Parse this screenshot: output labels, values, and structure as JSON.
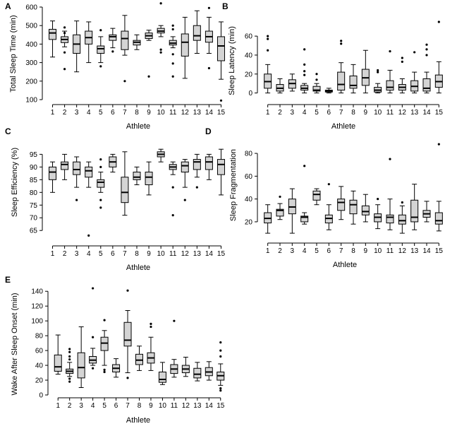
{
  "chart_data": [
    {
      "panel": "A",
      "type": "box",
      "xlabel": "Athlete",
      "ylabel": "Total Sleep Time (min)",
      "categories": [
        "1",
        "2",
        "3",
        "4",
        "5",
        "6",
        "7",
        "8",
        "9",
        "10",
        "11",
        "12",
        "13",
        "14",
        "15"
      ],
      "ylim": [
        100,
        600
      ],
      "yticks": [
        100,
        200,
        300,
        400,
        500,
        600
      ],
      "boxes": [
        {
          "whislo": 330,
          "q1": 425,
          "med": 460,
          "q3": 480,
          "whishi": 525,
          "fliers": []
        },
        {
          "whislo": 385,
          "q1": 408,
          "med": 425,
          "q3": 440,
          "whishi": 470,
          "fliers": [
            490,
            460,
            355,
            265
          ]
        },
        {
          "whislo": 250,
          "q1": 350,
          "med": 400,
          "q3": 450,
          "whishi": 525,
          "fliers": []
        },
        {
          "whislo": 300,
          "q1": 400,
          "med": 435,
          "q3": 470,
          "whishi": 520,
          "fliers": []
        },
        {
          "whislo": 300,
          "q1": 350,
          "med": 375,
          "q3": 390,
          "whishi": 440,
          "fliers": [
            475,
            280
          ]
        },
        {
          "whislo": 380,
          "q1": 420,
          "med": 440,
          "q3": 450,
          "whishi": 485,
          "fliers": [
            360
          ]
        },
        {
          "whislo": 340,
          "q1": 370,
          "med": 430,
          "q3": 470,
          "whishi": 555,
          "fliers": [
            200
          ]
        },
        {
          "whislo": 370,
          "q1": 395,
          "med": 410,
          "q3": 420,
          "whishi": 450,
          "fliers": []
        },
        {
          "whislo": 420,
          "q1": 430,
          "med": 445,
          "q3": 460,
          "whishi": 475,
          "fliers": [
            225
          ]
        },
        {
          "whislo": 440,
          "q1": 460,
          "med": 470,
          "q3": 485,
          "whishi": 500,
          "fliers": [
            620,
            370,
            355
          ]
        },
        {
          "whislo": 380,
          "q1": 395,
          "med": 405,
          "q3": 420,
          "whishi": 440,
          "fliers": [
            500,
            480,
            345,
            295,
            225
          ]
        },
        {
          "whislo": 215,
          "q1": 335,
          "med": 410,
          "q3": 455,
          "whishi": 545,
          "fliers": []
        },
        {
          "whislo": 350,
          "q1": 420,
          "med": 445,
          "q3": 500,
          "whishi": 580,
          "fliers": []
        },
        {
          "whislo": 350,
          "q1": 410,
          "med": 440,
          "q3": 470,
          "whishi": 545,
          "fliers": [
            595,
            270
          ]
        },
        {
          "whislo": 210,
          "q1": 310,
          "med": 390,
          "q3": 440,
          "whishi": 520,
          "fliers": [
            95
          ]
        }
      ]
    },
    {
      "panel": "B",
      "type": "box",
      "xlabel": "Athlete",
      "ylabel": "Sleep Latency (min)",
      "categories": [
        "1",
        "2",
        "3",
        "4",
        "5",
        "6",
        "7",
        "8",
        "9",
        "10",
        "11",
        "12",
        "13",
        "14",
        "15"
      ],
      "ylim": [
        -7,
        75
      ],
      "yticks": [
        0,
        20,
        40,
        60
      ],
      "boxes": [
        {
          "whislo": 0,
          "q1": 5,
          "med": 12,
          "q3": 20,
          "whishi": 30,
          "fliers": [
            60,
            57,
            45
          ]
        },
        {
          "whislo": 0,
          "q1": 2,
          "med": 5,
          "q3": 9,
          "whishi": 15,
          "fliers": []
        },
        {
          "whislo": 2,
          "q1": 5,
          "med": 10,
          "q3": 14,
          "whishi": 20,
          "fliers": []
        },
        {
          "whislo": 0,
          "q1": 3,
          "med": 5,
          "q3": 8,
          "whishi": 10,
          "fliers": [
            46,
            30,
            23,
            19
          ]
        },
        {
          "whislo": 0,
          "q1": 2,
          "med": 3,
          "q3": 7,
          "whishi": 10,
          "fliers": [
            20,
            14
          ]
        },
        {
          "whislo": 0,
          "q1": 1,
          "med": 2,
          "q3": 3,
          "whishi": 5,
          "fliers": []
        },
        {
          "whislo": 0,
          "q1": 3,
          "med": 9,
          "q3": 22,
          "whishi": 32,
          "fliers": [
            55,
            52
          ]
        },
        {
          "whislo": 0,
          "q1": 5,
          "med": 8,
          "q3": 18,
          "whishi": 30,
          "fliers": []
        },
        {
          "whislo": 0,
          "q1": 8,
          "med": 16,
          "q3": 25,
          "whishi": 45,
          "fliers": []
        },
        {
          "whislo": 0,
          "q1": 1,
          "med": 3,
          "q3": 6,
          "whishi": 10,
          "fliers": [
            24,
            22
          ]
        },
        {
          "whislo": 0,
          "q1": 3,
          "med": 6,
          "q3": 13,
          "whishi": 24,
          "fliers": [
            44
          ]
        },
        {
          "whislo": 0,
          "q1": 3,
          "med": 6,
          "q3": 9,
          "whishi": 15,
          "fliers": [
            37,
            33
          ]
        },
        {
          "whislo": 0,
          "q1": 2,
          "med": 7,
          "q3": 13,
          "whishi": 22,
          "fliers": [
            43
          ]
        },
        {
          "whislo": 0,
          "q1": 2,
          "med": 5,
          "q3": 15,
          "whishi": 22,
          "fliers": [
            51,
            46,
            40
          ]
        },
        {
          "whislo": 0,
          "q1": 6,
          "med": 12,
          "q3": 19,
          "whishi": 33,
          "fliers": [
            75
          ]
        }
      ]
    },
    {
      "panel": "C",
      "type": "box",
      "xlabel": "Athlete",
      "ylabel": "Sleep Efficiency (%)",
      "categories": [
        "1",
        "2",
        "3",
        "4",
        "5",
        "6",
        "7",
        "8",
        "9",
        "10",
        "11",
        "12",
        "13",
        "14",
        "15"
      ],
      "ylim": [
        62,
        96.5
      ],
      "yticks": [
        65,
        70,
        75,
        80,
        85,
        90,
        95
      ],
      "boxes": [
        {
          "whislo": 80,
          "q1": 85,
          "med": 88,
          "q3": 90,
          "whishi": 92,
          "fliers": []
        },
        {
          "whislo": 85,
          "q1": 89,
          "med": 91,
          "q3": 92,
          "whishi": 95,
          "fliers": []
        },
        {
          "whislo": 82,
          "q1": 87,
          "med": 89,
          "q3": 92,
          "whishi": 94,
          "fliers": [
            77
          ]
        },
        {
          "whislo": 82,
          "q1": 86,
          "med": 88.5,
          "q3": 90,
          "whishi": 92,
          "fliers": [
            63
          ]
        },
        {
          "whislo": 80,
          "q1": 82,
          "med": 84,
          "q3": 85,
          "whishi": 88,
          "fliers": [
            93,
            90,
            77,
            74
          ]
        },
        {
          "whislo": 88,
          "q1": 90,
          "med": 92,
          "q3": 94,
          "whishi": 95,
          "fliers": []
        },
        {
          "whislo": 71,
          "q1": 76,
          "med": 80,
          "q3": 86,
          "whishi": 96,
          "fliers": []
        },
        {
          "whislo": 83,
          "q1": 85,
          "med": 86,
          "q3": 88,
          "whishi": 90,
          "fliers": []
        },
        {
          "whislo": 79,
          "q1": 83,
          "med": 86,
          "q3": 88,
          "whishi": 92,
          "fliers": []
        },
        {
          "whislo": 92,
          "q1": 94,
          "med": 95,
          "q3": 96,
          "whishi": 97,
          "fliers": []
        },
        {
          "whislo": 87,
          "q1": 89,
          "med": 90,
          "q3": 91,
          "whishi": 92,
          "fliers": [
            82,
            71
          ]
        },
        {
          "whislo": 82,
          "q1": 88,
          "med": 90.5,
          "q3": 92,
          "whishi": 93,
          "fliers": [
            77
          ]
        },
        {
          "whislo": 86,
          "q1": 89,
          "med": 92,
          "q3": 93,
          "whishi": 95,
          "fliers": [
            82
          ]
        },
        {
          "whislo": 85,
          "q1": 89,
          "med": 92,
          "q3": 94,
          "whishi": 95,
          "fliers": []
        },
        {
          "whislo": 79,
          "q1": 87,
          "med": 91,
          "q3": 93,
          "whishi": 97,
          "fliers": []
        }
      ]
    },
    {
      "panel": "D",
      "type": "box",
      "xlabel": "Athlete",
      "ylabel": "Sleep Fragmentation",
      "categories": [
        "1",
        "2",
        "3",
        "4",
        "5",
        "6",
        "7",
        "8",
        "9",
        "10",
        "11",
        "12",
        "13",
        "14",
        "15"
      ],
      "ylim": [
        2,
        85
      ],
      "yticks": [
        20,
        40,
        60,
        80
      ],
      "boxes": [
        {
          "whislo": 10,
          "q1": 19,
          "med": 23,
          "q3": 28,
          "whishi": 35,
          "fliers": []
        },
        {
          "whislo": 22,
          "q1": 25,
          "med": 30,
          "q3": 31,
          "whishi": 36,
          "fliers": [
            42
          ]
        },
        {
          "whislo": 10,
          "q1": 27,
          "med": 33,
          "q3": 40,
          "whishi": 49,
          "fliers": []
        },
        {
          "whislo": 18,
          "q1": 20,
          "med": 24,
          "q3": 25,
          "whishi": 28,
          "fliers": [
            69
          ]
        },
        {
          "whislo": 35,
          "q1": 39,
          "med": 44,
          "q3": 47,
          "whishi": 49,
          "fliers": []
        },
        {
          "whislo": 13,
          "q1": 19,
          "med": 23,
          "q3": 26,
          "whishi": 35,
          "fliers": [
            53
          ]
        },
        {
          "whislo": 22,
          "q1": 30,
          "med": 37,
          "q3": 40,
          "whishi": 51,
          "fliers": []
        },
        {
          "whislo": 18,
          "q1": 27,
          "med": 35,
          "q3": 39,
          "whishi": 47,
          "fliers": []
        },
        {
          "whislo": 20,
          "q1": 26,
          "med": 29,
          "q3": 34,
          "whishi": 44,
          "fliers": []
        },
        {
          "whislo": 14,
          "q1": 20,
          "med": 24,
          "q3": 27,
          "whishi": 35,
          "fliers": [
            40
          ]
        },
        {
          "whislo": 13,
          "q1": 19,
          "med": 24,
          "q3": 26,
          "whishi": 40,
          "fliers": [
            75
          ]
        },
        {
          "whislo": 10,
          "q1": 18,
          "med": 21,
          "q3": 26,
          "whishi": 34,
          "fliers": [
            37
          ]
        },
        {
          "whislo": 13,
          "q1": 20,
          "med": 24,
          "q3": 39,
          "whishi": 53,
          "fliers": []
        },
        {
          "whislo": 20,
          "q1": 24,
          "med": 27,
          "q3": 30,
          "whishi": 38,
          "fliers": []
        },
        {
          "whislo": 12,
          "q1": 18,
          "med": 21,
          "q3": 28,
          "whishi": 38,
          "fliers": [
            88
          ]
        }
      ]
    },
    {
      "panel": "E",
      "type": "box",
      "xlabel": "Athlete",
      "ylabel": "Wake After Sleep Onset (min)",
      "categories": [
        "1",
        "2",
        "3",
        "4",
        "5",
        "6",
        "7",
        "8",
        "9",
        "10",
        "11",
        "12",
        "13",
        "14",
        "15"
      ],
      "ylim": [
        0,
        145
      ],
      "yticks": [
        0,
        20,
        40,
        60,
        80,
        100,
        120,
        140
      ],
      "boxes": [
        {
          "whislo": 28,
          "q1": 32,
          "med": 38,
          "q3": 54,
          "whishi": 81,
          "fliers": []
        },
        {
          "whislo": 25,
          "q1": 29,
          "med": 32,
          "q3": 35,
          "whishi": 44,
          "fliers": [
            62,
            58,
            52,
            48,
            22,
            18
          ]
        },
        {
          "whislo": 10,
          "q1": 23,
          "med": 37,
          "q3": 57,
          "whishi": 92,
          "fliers": []
        },
        {
          "whislo": 40,
          "q1": 43,
          "med": 47,
          "q3": 52,
          "whishi": 63,
          "fliers": [
            144,
            78,
            36
          ]
        },
        {
          "whislo": 40,
          "q1": 60,
          "med": 70,
          "q3": 78,
          "whishi": 87,
          "fliers": [
            101,
            34,
            31
          ]
        },
        {
          "whislo": 24,
          "q1": 31,
          "med": 36,
          "q3": 41,
          "whishi": 49,
          "fliers": []
        },
        {
          "whislo": 30,
          "q1": 66,
          "med": 74,
          "q3": 98,
          "whishi": 114,
          "fliers": [
            141,
            23
          ]
        },
        {
          "whislo": 33,
          "q1": 41,
          "med": 47,
          "q3": 55,
          "whishi": 66,
          "fliers": []
        },
        {
          "whislo": 33,
          "q1": 43,
          "med": 50,
          "q3": 57,
          "whishi": 78,
          "fliers": [
            96,
            92
          ]
        },
        {
          "whislo": 14,
          "q1": 17,
          "med": 21,
          "q3": 31,
          "whishi": 44,
          "fliers": []
        },
        {
          "whislo": 24,
          "q1": 29,
          "med": 35,
          "q3": 41,
          "whishi": 48,
          "fliers": [
            100
          ]
        },
        {
          "whislo": 25,
          "q1": 30,
          "med": 35,
          "q3": 40,
          "whishi": 51,
          "fliers": []
        },
        {
          "whislo": 19,
          "q1": 23,
          "med": 28,
          "q3": 36,
          "whishi": 44,
          "fliers": []
        },
        {
          "whislo": 20,
          "q1": 26,
          "med": 31,
          "q3": 37,
          "whishi": 45,
          "fliers": []
        },
        {
          "whislo": 13,
          "q1": 20,
          "med": 26,
          "q3": 31,
          "whishi": 42,
          "fliers": [
            71,
            60,
            52,
            9,
            6
          ]
        }
      ]
    }
  ]
}
